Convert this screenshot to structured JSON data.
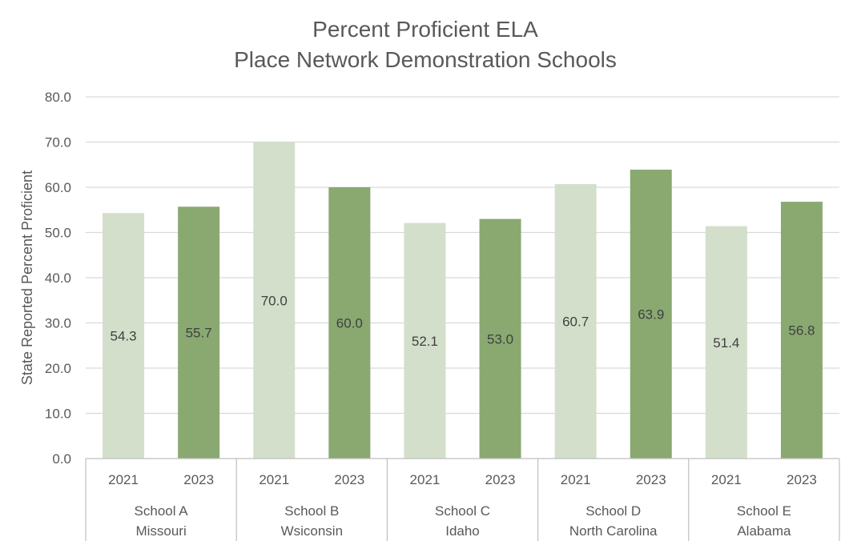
{
  "chart_data": {
    "type": "bar",
    "title": "Percent Proficient ELA",
    "subtitle": "Place Network Demonstration Schools",
    "ylabel": "State Reported Percent Proficient",
    "xlabel": "",
    "ylim": [
      0,
      80
    ],
    "ytick_step": 10,
    "ytick_labels": [
      "0.0",
      "10.0",
      "20.0",
      "30.0",
      "40.0",
      "50.0",
      "60.0",
      "70.0",
      "80.0"
    ],
    "grid": true,
    "years": [
      "2021",
      "2023"
    ],
    "groups": [
      {
        "name": "School A",
        "state": "Missouri",
        "values": [
          54.3,
          55.7
        ],
        "labels": [
          "54.3",
          "55.7"
        ]
      },
      {
        "name": "School B",
        "state": "Wsiconsin",
        "values": [
          70.0,
          60.0
        ],
        "labels": [
          "70.0",
          "60.0"
        ]
      },
      {
        "name": "School C",
        "state": "Idaho",
        "values": [
          52.1,
          53.0
        ],
        "labels": [
          "52.1",
          "53.0"
        ]
      },
      {
        "name": "School D",
        "state": "North Carolina",
        "values": [
          60.7,
          63.9
        ],
        "labels": [
          "60.7",
          "63.9"
        ]
      },
      {
        "name": "School E",
        "state": "Alabama",
        "values": [
          51.4,
          56.8
        ],
        "labels": [
          "51.4",
          "56.8"
        ]
      }
    ],
    "colors": {
      "year_2021": "#d3dfca",
      "year_2023": "#89a971",
      "gridline": "#d9d9d9",
      "axis_line": "#bfbfbf",
      "text": "#595959"
    }
  }
}
